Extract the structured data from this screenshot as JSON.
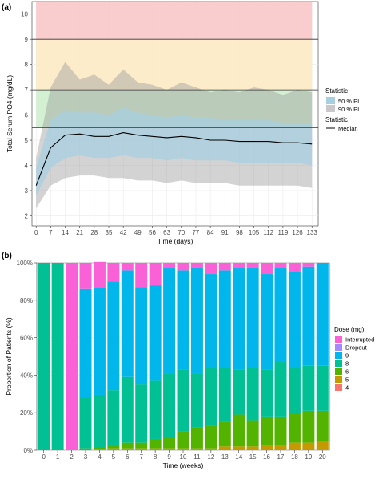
{
  "chart_data": [
    {
      "panel_label": "(a)",
      "type": "area",
      "xlabel": "Time (days)",
      "ylabel": "Total Serum PO4 (mg/dL)",
      "x_ticks": [
        0,
        7,
        14,
        21,
        28,
        35,
        42,
        49,
        56,
        63,
        70,
        77,
        84,
        91,
        98,
        105,
        112,
        119,
        126,
        133
      ],
      "y_ticks": [
        2,
        3,
        4,
        5,
        6,
        7,
        8,
        9,
        10
      ],
      "xlim": [
        -2,
        136
      ],
      "ylim": [
        1.6,
        10.5
      ],
      "reference_lines": [
        9,
        7,
        5.5
      ],
      "bands": [
        {
          "from": 9,
          "to": 10.5,
          "color": "#f8c8c8"
        },
        {
          "from": 7,
          "to": 9,
          "color": "#fdeac4"
        },
        {
          "from": 5.5,
          "to": 7,
          "color": "#cfeecd"
        }
      ],
      "x": [
        0,
        7,
        14,
        21,
        28,
        35,
        42,
        49,
        56,
        63,
        70,
        77,
        84,
        91,
        98,
        105,
        112,
        119,
        126,
        133
      ],
      "pi90_upper": [
        4.3,
        7.1,
        8.1,
        7.4,
        7.6,
        7.2,
        7.8,
        7.3,
        7.2,
        7.0,
        7.3,
        7.1,
        6.9,
        7.0,
        6.9,
        7.1,
        7.0,
        6.8,
        7.0,
        6.9
      ],
      "pi90_lower": [
        2.3,
        3.2,
        3.5,
        3.6,
        3.6,
        3.5,
        3.5,
        3.4,
        3.4,
        3.3,
        3.4,
        3.3,
        3.3,
        3.3,
        3.2,
        3.2,
        3.2,
        3.2,
        3.2,
        3.1
      ],
      "pi50_upper": [
        3.9,
        5.8,
        6.2,
        6.1,
        6.1,
        6.0,
        6.3,
        6.1,
        6.0,
        5.9,
        6.0,
        5.9,
        5.9,
        5.8,
        5.8,
        5.8,
        5.8,
        5.7,
        5.7,
        5.7
      ],
      "pi50_lower": [
        2.8,
        3.9,
        4.3,
        4.4,
        4.3,
        4.3,
        4.4,
        4.3,
        4.3,
        4.2,
        4.3,
        4.2,
        4.2,
        4.2,
        4.1,
        4.1,
        4.1,
        4.1,
        4.1,
        4.0
      ],
      "median": [
        3.2,
        4.7,
        5.2,
        5.25,
        5.15,
        5.15,
        5.3,
        5.2,
        5.15,
        5.1,
        5.15,
        5.1,
        5.0,
        5.0,
        4.95,
        4.95,
        4.95,
        4.9,
        4.9,
        4.85
      ],
      "legend": {
        "statistic_title": "Statistic",
        "items": [
          {
            "label": "50 % PI",
            "color": "#a7cfe0"
          },
          {
            "label": "90 % PI",
            "color": "#c9c9c9"
          }
        ],
        "median_title": "Statistic",
        "median_label": "Median"
      }
    },
    {
      "panel_label": "(b)",
      "type": "bar",
      "stacked": true,
      "xlabel": "Time (weeks)",
      "ylabel": "Proportion of Patients (%)",
      "categories": [
        0,
        1,
        2,
        3,
        4,
        5,
        6,
        7,
        8,
        9,
        10,
        11,
        12,
        13,
        14,
        15,
        16,
        17,
        18,
        19,
        20
      ],
      "y_ticks": [
        "0%",
        "20%",
        "40%",
        "60%",
        "80%",
        "100%"
      ],
      "legend_title": "Dose (mg)",
      "series": [
        {
          "name": "4",
          "color": "#f8766d",
          "values": [
            0,
            0,
            0,
            0,
            0,
            0,
            0,
            0,
            0,
            0,
            0,
            0,
            0,
            0,
            0,
            0,
            0,
            0,
            0,
            0,
            0
          ]
        },
        {
          "name": "5",
          "color": "#c49a00",
          "values": [
            0,
            0,
            0,
            0,
            0.5,
            1,
            1,
            1,
            1,
            1,
            1,
            1,
            1,
            2,
            2,
            2,
            3,
            3,
            4,
            4,
            5
          ]
        },
        {
          "name": "6",
          "color": "#53b400",
          "values": [
            0,
            0,
            0,
            1,
            1,
            2,
            3,
            3,
            5,
            6,
            9,
            11,
            12,
            13,
            17,
            14,
            15,
            15,
            16,
            17,
            16
          ]
        },
        {
          "name": "8",
          "color": "#00c094",
          "values": [
            100,
            100,
            0,
            27,
            28,
            29,
            35,
            31,
            31,
            34,
            33,
            29,
            31,
            29,
            24,
            28,
            25,
            29,
            24,
            24,
            24
          ]
        },
        {
          "name": "9",
          "color": "#00b6eb",
          "values": [
            0,
            0,
            0,
            58,
            57,
            58,
            57,
            52,
            51,
            56,
            53,
            56,
            50,
            52,
            54,
            53,
            51,
            50,
            51,
            53,
            55
          ]
        },
        {
          "name": "Dropout",
          "color": "#a58aff",
          "values": [
            0,
            0,
            0,
            0,
            0,
            0,
            0,
            0,
            0,
            0,
            0,
            0,
            0,
            0,
            0,
            0,
            0,
            0,
            0,
            0,
            0
          ]
        },
        {
          "name": "Interrupted",
          "color": "#fb61d7",
          "values": [
            0,
            0,
            100,
            14,
            14,
            10,
            4,
            13,
            12,
            3,
            4,
            3,
            6,
            4,
            3,
            3,
            6,
            3,
            5,
            2,
            0
          ]
        }
      ],
      "legend_order": [
        "Interrupted",
        "Dropout",
        "9",
        "8",
        "6",
        "5",
        "4"
      ]
    }
  ]
}
